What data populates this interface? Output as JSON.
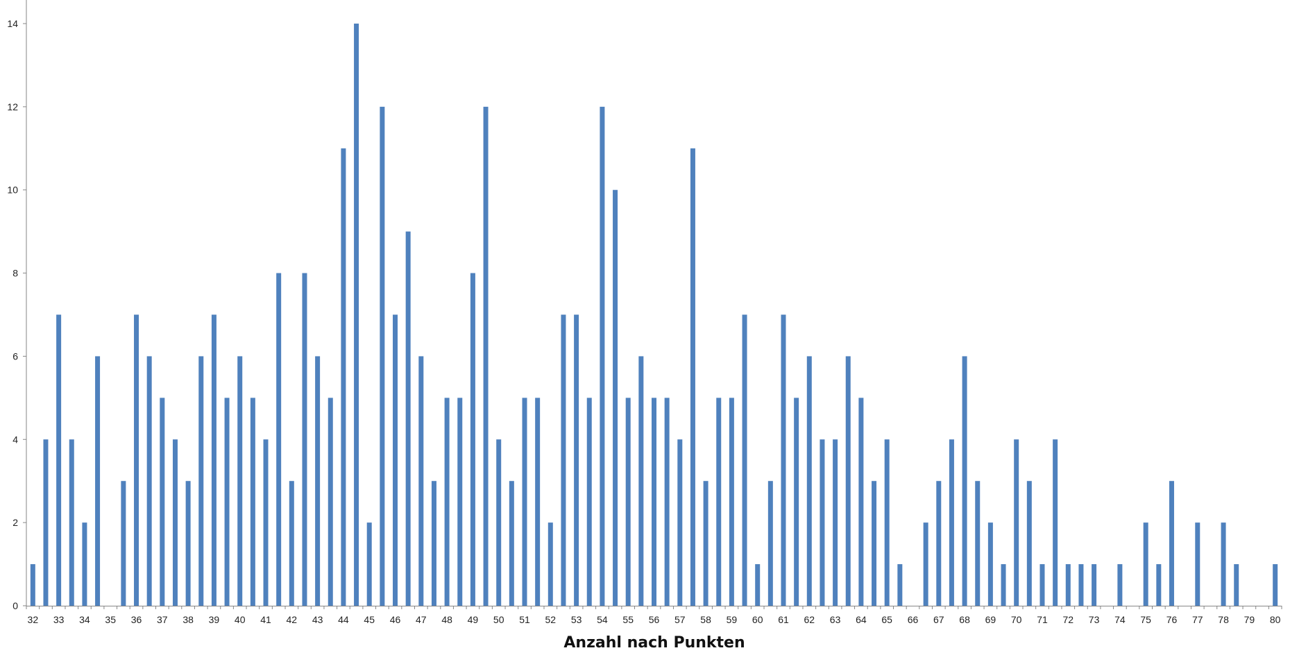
{
  "chart_data": {
    "type": "bar",
    "title": "",
    "xlabel": "Anzahl nach Punkten",
    "ylabel": "",
    "ylim": [
      0,
      14
    ],
    "yticks": [
      0,
      2,
      4,
      6,
      8,
      10,
      12,
      14
    ],
    "grid": false,
    "legend": "none",
    "bar_color": "#4f81bd",
    "categories": [
      32,
      32.5,
      33,
      33.5,
      34,
      34.5,
      35,
      35.5,
      36,
      36.5,
      37,
      37.5,
      38,
      38.5,
      39,
      39.5,
      40,
      40.5,
      41,
      41.5,
      42,
      42.5,
      43,
      43.5,
      44,
      44.5,
      45,
      45.5,
      46,
      46.5,
      47,
      47.5,
      48,
      48.5,
      49,
      49.5,
      50,
      50.5,
      51,
      51.5,
      52,
      52.5,
      53,
      53.5,
      54,
      54.5,
      55,
      55.5,
      56,
      56.5,
      57,
      57.5,
      58,
      58.5,
      59,
      59.5,
      60,
      60.5,
      61,
      61.5,
      62,
      62.5,
      63,
      63.5,
      64,
      64.5,
      65,
      65.5,
      66,
      66.5,
      67,
      67.5,
      68,
      68.5,
      69,
      69.5,
      70,
      70.5,
      71,
      71.5,
      72,
      72.5,
      73,
      73.5,
      74,
      74.5,
      75,
      75.5,
      76,
      76.5,
      77,
      77.5,
      78,
      78.5,
      79,
      79.5,
      80
    ],
    "xtick_labels": [
      "32",
      "33",
      "34",
      "35",
      "36",
      "37",
      "38",
      "39",
      "40",
      "41",
      "42",
      "43",
      "44",
      "45",
      "46",
      "47",
      "48",
      "49",
      "50",
      "51",
      "52",
      "53",
      "54",
      "55",
      "56",
      "57",
      "58",
      "59",
      "60",
      "61",
      "62",
      "63",
      "64",
      "65",
      "66",
      "67",
      "68",
      "69",
      "70",
      "71",
      "72",
      "73",
      "74",
      "75",
      "76",
      "77",
      "78",
      "79",
      "80"
    ],
    "values": [
      1,
      4,
      7,
      4,
      2,
      6,
      0,
      3,
      7,
      6,
      5,
      4,
      3,
      6,
      7,
      5,
      6,
      5,
      4,
      8,
      3,
      8,
      6,
      5,
      11,
      14,
      2,
      12,
      7,
      9,
      6,
      3,
      5,
      5,
      8,
      12,
      4,
      3,
      5,
      5,
      2,
      7,
      7,
      5,
      12,
      10,
      5,
      6,
      5,
      5,
      4,
      11,
      3,
      5,
      5,
      7,
      1,
      3,
      7,
      5,
      6,
      4,
      4,
      6,
      5,
      3,
      4,
      1,
      0,
      2,
      3,
      4,
      6,
      3,
      2,
      1,
      4,
      3,
      1,
      4,
      1,
      1,
      1,
      0,
      1,
      0,
      2,
      1,
      3,
      0,
      2,
      0,
      2,
      1,
      0,
      0,
      1
    ]
  }
}
